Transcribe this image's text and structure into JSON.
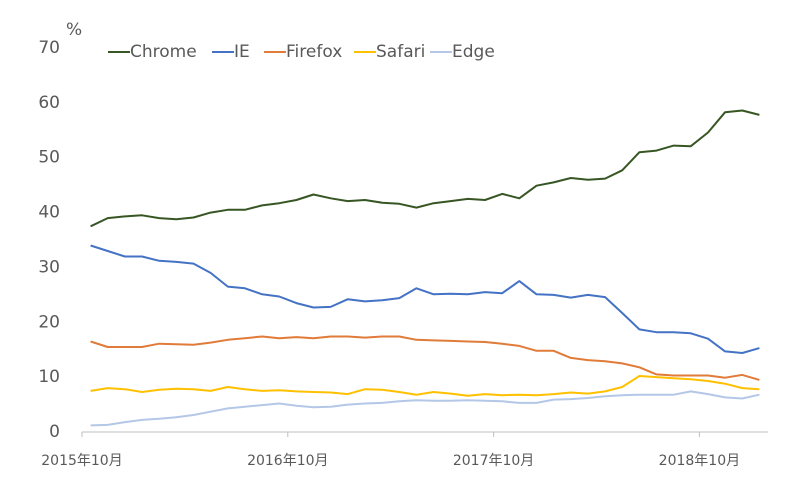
{
  "chart_data": {
    "type": "line",
    "y_label": "%",
    "categories": [
      "2015年10月",
      null,
      null,
      null,
      null,
      null,
      null,
      null,
      null,
      null,
      null,
      null,
      "2016年10月",
      null,
      null,
      null,
      null,
      null,
      null,
      null,
      null,
      null,
      null,
      null,
      "2017年10月",
      null,
      null,
      null,
      null,
      null,
      null,
      null,
      null,
      null,
      null,
      null,
      "2018年10月",
      null,
      null,
      null
    ],
    "series": [
      {
        "name": "Chrome",
        "color": "#375623",
        "values": [
          37.5,
          39,
          39.3,
          39.5,
          39,
          38.8,
          39.1,
          40,
          40.5,
          40.5,
          41.3,
          41.7,
          42.3,
          43.3,
          42.6,
          42.1,
          42.3,
          41.8,
          41.6,
          40.9,
          41.7,
          42.1,
          42.5,
          42.3,
          43.4,
          42.6,
          44.9,
          45.5,
          46.3,
          46,
          46.2,
          47.7,
          51,
          51.3,
          52.2,
          52.1,
          54.6,
          58.3,
          58.6,
          57.8
        ]
      },
      {
        "name": "IE",
        "color": "#4472c4",
        "values": [
          34,
          33,
          32,
          32,
          31.2,
          31,
          30.7,
          29,
          26.5,
          26.2,
          25.1,
          24.7,
          23.5,
          22.7,
          22.8,
          24.2,
          23.8,
          24,
          24.4,
          26.2,
          25.1,
          25.2,
          25.1,
          25.5,
          25.3,
          27.5,
          25.1,
          25,
          24.5,
          25,
          24.6,
          21.7,
          18.7,
          18.2,
          18.2,
          18,
          17,
          14.7,
          14.4,
          15.3
        ]
      },
      {
        "name": "Firefox",
        "color": "#e07b39",
        "values": [
          16.5,
          15.5,
          15.5,
          15.5,
          16.1,
          16,
          15.9,
          16.3,
          16.8,
          17.1,
          17.4,
          17.1,
          17.3,
          17.1,
          17.4,
          17.4,
          17.2,
          17.4,
          17.4,
          16.8,
          16.7,
          16.6,
          16.5,
          16.4,
          16.1,
          15.7,
          14.8,
          14.8,
          13.5,
          13.1,
          12.9,
          12.5,
          11.8,
          10.5,
          10.3,
          10.3,
          10.3,
          9.9,
          10.4,
          9.5
        ]
      },
      {
        "name": "Safari",
        "color": "#ffc000",
        "values": [
          7.5,
          8,
          7.8,
          7.3,
          7.7,
          7.9,
          7.8,
          7.5,
          8.2,
          7.8,
          7.5,
          7.6,
          7.4,
          7.3,
          7.2,
          6.9,
          7.8,
          7.7,
          7.3,
          6.8,
          7.3,
          7,
          6.6,
          6.9,
          6.7,
          6.8,
          6.7,
          6.9,
          7.2,
          7,
          7.4,
          8.2,
          10.2,
          10,
          9.8,
          9.6,
          9.3,
          8.8,
          8,
          7.8
        ]
      },
      {
        "name": "Edge",
        "color": "#b4c7e7",
        "values": [
          1.2,
          1.3,
          1.8,
          2.2,
          2.4,
          2.7,
          3.1,
          3.7,
          4.3,
          4.6,
          4.9,
          5.2,
          4.8,
          4.5,
          4.6,
          5,
          5.2,
          5.3,
          5.6,
          5.8,
          5.7,
          5.7,
          5.8,
          5.7,
          5.6,
          5.3,
          5.3,
          5.9,
          6,
          6.2,
          6.5,
          6.7,
          6.8,
          6.8,
          6.8,
          7.4,
          6.9,
          6.3,
          6.1,
          6.8
        ]
      }
    ],
    "ylim": [
      0,
      70
    ],
    "yticks": [
      0,
      10,
      20,
      30,
      40,
      50,
      60,
      70
    ],
    "legend": "top"
  }
}
